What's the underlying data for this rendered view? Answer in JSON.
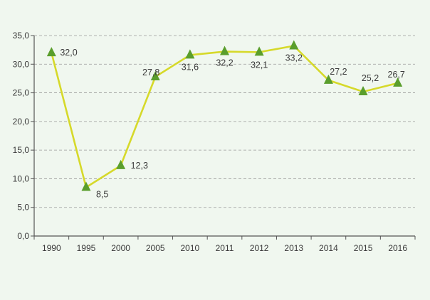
{
  "chart_data": {
    "type": "line",
    "title": "",
    "xlabel": "",
    "ylabel": "",
    "categories": [
      "1990",
      "1995",
      "2000",
      "2005",
      "2010",
      "2011",
      "2012",
      "2013",
      "2014",
      "2015",
      "2016"
    ],
    "series": [
      {
        "values": [
          32.0,
          8.5,
          12.3,
          27.8,
          31.6,
          32.2,
          32.1,
          33.2,
          27.2,
          25.2,
          26.7
        ],
        "data_labels": [
          "32,0",
          "8,5",
          "12,3",
          "27,8",
          "31,6",
          "32,2",
          "32,1",
          "33,2",
          "27,2",
          "25,2",
          "26,7"
        ],
        "line_color": "#d6d92a",
        "marker": "triangle",
        "marker_color": "#5a9e2c"
      }
    ],
    "ylim": [
      0,
      35
    ],
    "yticks": [
      0,
      5,
      10,
      15,
      20,
      25,
      30,
      35
    ],
    "ytick_labels": [
      "0,0",
      "5,0",
      "10,0",
      "15,0",
      "20,0",
      "25,0",
      "30,0",
      "35,0"
    ],
    "grid": "horizontal-dashed",
    "legend": "none"
  },
  "colors": {
    "background": "#f0f7ef",
    "axis": "#555555",
    "grid": "#9a9a9a"
  }
}
